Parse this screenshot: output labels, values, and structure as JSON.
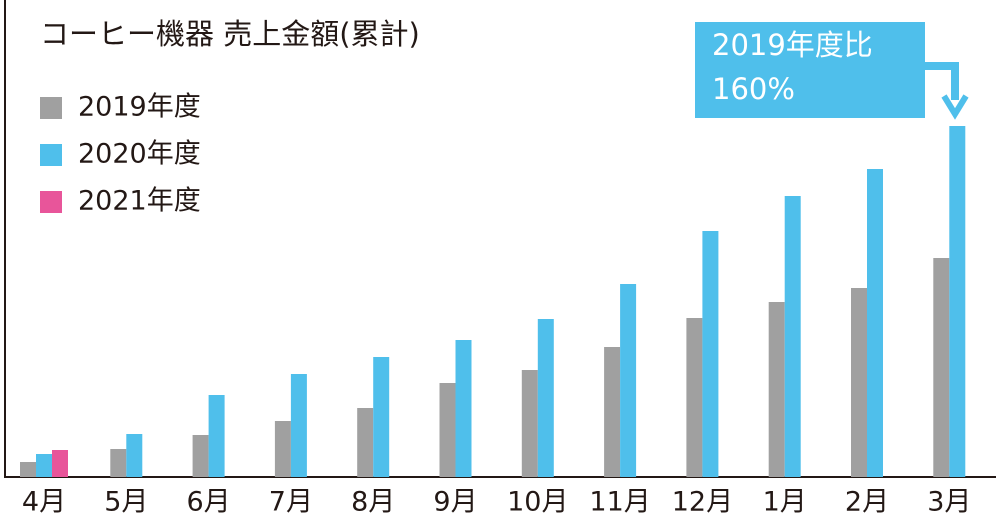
{
  "chart_data": {
    "type": "bar",
    "title": "コーヒー機器 売上金額(累計)",
    "categories": [
      "4月",
      "5月",
      "6月",
      "7月",
      "8月",
      "9月",
      "10月",
      "11月",
      "12月",
      "1月",
      "2月",
      "3月"
    ],
    "series": [
      {
        "name": "2019年度",
        "color": "#a0a0a0",
        "values": [
          15,
          28,
          42,
          56,
          69,
          94,
          107,
          130,
          159,
          175,
          189,
          219
        ]
      },
      {
        "name": "2020年度",
        "color": "#4fbfeb",
        "values": [
          23,
          43,
          82,
          103,
          120,
          137,
          158,
          193,
          246,
          281,
          308,
          351
        ]
      },
      {
        "name": "2021年度",
        "color": "#e8559a",
        "values": [
          27,
          null,
          null,
          null,
          null,
          null,
          null,
          null,
          null,
          null,
          null,
          null
        ]
      }
    ],
    "ylim": [
      0,
      477
    ],
    "legend": "top-left",
    "annotation": [
      "2019年度比",
      "160%"
    ],
    "annotation_color": "#4fbfeb"
  }
}
